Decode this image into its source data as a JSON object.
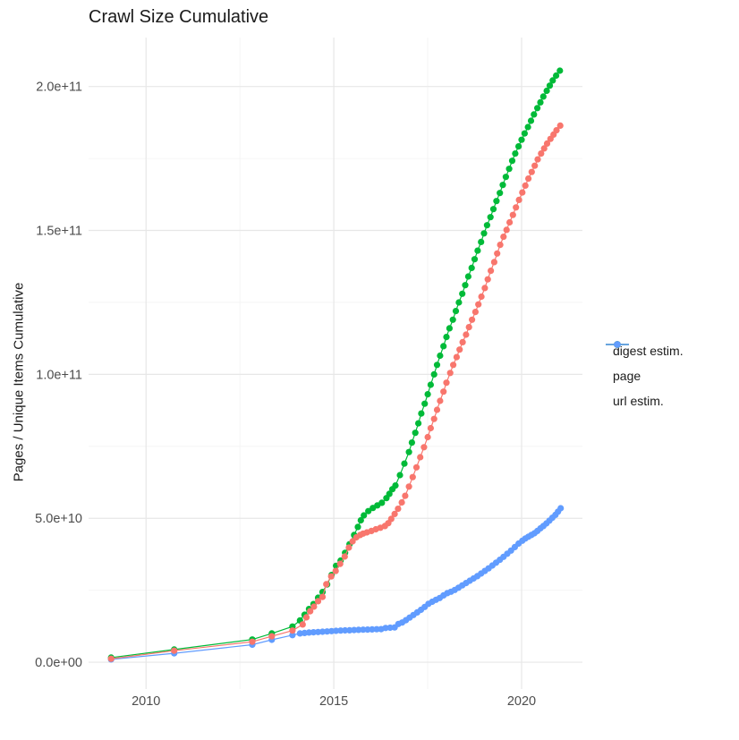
{
  "title": "Crawl Size Cumulative",
  "y_axis": {
    "title": "Pages / Unique Items Cumulative",
    "major_ticks": [
      {
        "label": "0.0e+00",
        "value_e9": 0
      },
      {
        "label": "5.0e+10",
        "value_e9": 50
      },
      {
        "label": "1.0e+11",
        "value_e9": 100
      },
      {
        "label": "1.5e+11",
        "value_e9": 150
      },
      {
        "label": "2.0e+11",
        "value_e9": 200
      }
    ],
    "minor_ticks_e9": [
      25,
      75,
      125,
      175
    ]
  },
  "x_axis": {
    "major_ticks": [
      {
        "label": "2010",
        "value": 2010
      },
      {
        "label": "2015",
        "value": 2015
      },
      {
        "label": "2020",
        "value": 2020
      }
    ],
    "minor_ticks": [
      2012.5,
      2017.5
    ]
  },
  "legend": {
    "items": [
      {
        "label": "digest estim.",
        "color": "#F8766D"
      },
      {
        "label": "page",
        "color": "#00BA38"
      },
      {
        "label": "url estim.",
        "color": "#619CFF"
      }
    ]
  },
  "colors": {
    "digest": "#F8766D",
    "page": "#00BA38",
    "url": "#619CFF",
    "grid_major": "#E7E7E7",
    "grid_minor": "#F3F3F3",
    "tick_text": "#4D4D4D",
    "text": "#1a1a1a"
  },
  "chart_data": {
    "type": "line",
    "title": "Crawl Size Cumulative",
    "xlabel": "",
    "ylabel": "Pages / Unique Items Cumulative",
    "values_unit": "1e9 (billions of pages / unique items)",
    "xlim": [
      2008.47,
      2021.62
    ],
    "ylim_e9": [
      -9.3,
      217
    ],
    "grid": true,
    "legend_position": "right",
    "marker": "point",
    "series": [
      {
        "name": "url estim.",
        "color": "#619CFF",
        "points_year_billions": [
          [
            2009.07,
            1.0
          ],
          [
            2010.75,
            3.1
          ],
          [
            2012.83,
            6.1
          ],
          [
            2013.35,
            7.8
          ],
          [
            2013.9,
            9.4
          ],
          [
            2014.1,
            10.0
          ],
          [
            2014.22,
            10.15
          ],
          [
            2014.34,
            10.3
          ],
          [
            2014.46,
            10.4
          ],
          [
            2014.58,
            10.5
          ],
          [
            2014.7,
            10.6
          ],
          [
            2014.82,
            10.7
          ],
          [
            2014.94,
            10.8
          ],
          [
            2015.06,
            10.9
          ],
          [
            2015.18,
            11.0
          ],
          [
            2015.3,
            11.05
          ],
          [
            2015.42,
            11.1
          ],
          [
            2015.54,
            11.2
          ],
          [
            2015.66,
            11.25
          ],
          [
            2015.78,
            11.3
          ],
          [
            2015.9,
            11.35
          ],
          [
            2016.02,
            11.4
          ],
          [
            2016.14,
            11.45
          ],
          [
            2016.26,
            11.5
          ],
          [
            2016.38,
            11.9
          ],
          [
            2016.5,
            12.0
          ],
          [
            2016.62,
            12.1
          ],
          [
            2016.72,
            13.3
          ],
          [
            2016.82,
            13.8
          ],
          [
            2016.92,
            14.6
          ],
          [
            2017.02,
            15.5
          ],
          [
            2017.12,
            16.4
          ],
          [
            2017.22,
            17.3
          ],
          [
            2017.32,
            18.2
          ],
          [
            2017.42,
            19.2
          ],
          [
            2017.52,
            20.3
          ],
          [
            2017.62,
            21.0
          ],
          [
            2017.72,
            21.7
          ],
          [
            2017.82,
            22.3
          ],
          [
            2017.92,
            23.2
          ],
          [
            2018.02,
            24.0
          ],
          [
            2018.12,
            24.5
          ],
          [
            2018.22,
            25.1
          ],
          [
            2018.32,
            25.9
          ],
          [
            2018.42,
            26.7
          ],
          [
            2018.52,
            27.5
          ],
          [
            2018.62,
            28.3
          ],
          [
            2018.72,
            29.1
          ],
          [
            2018.82,
            29.9
          ],
          [
            2018.92,
            30.8
          ],
          [
            2019.02,
            31.7
          ],
          [
            2019.12,
            32.6
          ],
          [
            2019.22,
            33.6
          ],
          [
            2019.32,
            34.6
          ],
          [
            2019.42,
            35.6
          ],
          [
            2019.52,
            36.6
          ],
          [
            2019.62,
            37.7
          ],
          [
            2019.72,
            38.8
          ],
          [
            2019.82,
            40.0
          ],
          [
            2019.92,
            41.2
          ],
          [
            2020.02,
            42.2
          ],
          [
            2020.1,
            43.0
          ],
          [
            2020.18,
            43.6
          ],
          [
            2020.26,
            44.2
          ],
          [
            2020.34,
            44.8
          ],
          [
            2020.42,
            45.6
          ],
          [
            2020.5,
            46.5
          ],
          [
            2020.58,
            47.3
          ],
          [
            2020.66,
            48.2
          ],
          [
            2020.74,
            49.2
          ],
          [
            2020.82,
            50.2
          ],
          [
            2020.9,
            51.2
          ],
          [
            2020.97,
            52.3
          ],
          [
            2021.04,
            53.5
          ]
        ]
      },
      {
        "name": "page",
        "color": "#00BA38",
        "points_year_billions": [
          [
            2009.07,
            1.6
          ],
          [
            2010.75,
            4.4
          ],
          [
            2012.83,
            7.9
          ],
          [
            2013.35,
            10.0
          ],
          [
            2013.9,
            12.4
          ],
          [
            2014.1,
            14.5
          ],
          [
            2014.22,
            16.5
          ],
          [
            2014.34,
            18.5
          ],
          [
            2014.46,
            20.2
          ],
          [
            2014.58,
            22.4
          ],
          [
            2014.7,
            24.4
          ],
          [
            2014.82,
            27.0
          ],
          [
            2014.94,
            30.3
          ],
          [
            2015.06,
            33.5
          ],
          [
            2015.18,
            35.3
          ],
          [
            2015.3,
            38.0
          ],
          [
            2015.42,
            41.0
          ],
          [
            2015.54,
            44.2
          ],
          [
            2015.64,
            47.0
          ],
          [
            2015.72,
            49.3
          ],
          [
            2015.8,
            51.0
          ],
          [
            2015.92,
            52.5
          ],
          [
            2016.04,
            53.6
          ],
          [
            2016.16,
            54.5
          ],
          [
            2016.28,
            55.4
          ],
          [
            2016.4,
            57.0
          ],
          [
            2016.48,
            58.5
          ],
          [
            2016.56,
            60.1
          ],
          [
            2016.64,
            61.4
          ],
          [
            2016.76,
            65.0
          ],
          [
            2016.88,
            69.0
          ],
          [
            2017.0,
            73.0
          ],
          [
            2017.08,
            76.3
          ],
          [
            2017.17,
            79.7
          ],
          [
            2017.25,
            83.0
          ],
          [
            2017.33,
            86.4
          ],
          [
            2017.42,
            89.8
          ],
          [
            2017.5,
            93.1
          ],
          [
            2017.58,
            96.4
          ],
          [
            2017.67,
            100.0
          ],
          [
            2017.75,
            103.3
          ],
          [
            2017.83,
            106.5
          ],
          [
            2017.92,
            109.8
          ],
          [
            2018.0,
            113.0
          ],
          [
            2018.08,
            116.0
          ],
          [
            2018.17,
            119.0
          ],
          [
            2018.25,
            122.0
          ],
          [
            2018.33,
            125.0
          ],
          [
            2018.42,
            128.0
          ],
          [
            2018.5,
            131.0
          ],
          [
            2018.58,
            134.0
          ],
          [
            2018.67,
            137.0
          ],
          [
            2018.75,
            140.0
          ],
          [
            2018.83,
            143.0
          ],
          [
            2018.92,
            146.0
          ],
          [
            2019.0,
            149.0
          ],
          [
            2019.08,
            151.8
          ],
          [
            2019.17,
            154.6
          ],
          [
            2019.25,
            157.4
          ],
          [
            2019.33,
            160.2
          ],
          [
            2019.42,
            163.0
          ],
          [
            2019.5,
            165.8
          ],
          [
            2019.58,
            168.6
          ],
          [
            2019.67,
            171.4
          ],
          [
            2019.75,
            174.2
          ],
          [
            2019.83,
            176.7
          ],
          [
            2019.92,
            179.2
          ],
          [
            2020.0,
            181.5
          ],
          [
            2020.08,
            183.7
          ],
          [
            2020.17,
            185.9
          ],
          [
            2020.25,
            188.1
          ],
          [
            2020.33,
            190.3
          ],
          [
            2020.42,
            192.5
          ],
          [
            2020.5,
            194.5
          ],
          [
            2020.58,
            196.5
          ],
          [
            2020.67,
            198.5
          ],
          [
            2020.75,
            200.3
          ],
          [
            2020.83,
            202.1
          ],
          [
            2020.92,
            203.8
          ],
          [
            2021.02,
            205.5
          ]
        ]
      },
      {
        "name": "digest estim.",
        "color": "#F8766D",
        "points_year_billions": [
          [
            2009.07,
            1.2
          ],
          [
            2010.75,
            4.0
          ],
          [
            2012.83,
            7.1
          ],
          [
            2013.35,
            9.0
          ],
          [
            2013.9,
            11.0
          ],
          [
            2014.17,
            13.1
          ],
          [
            2014.27,
            15.6
          ],
          [
            2014.37,
            17.7
          ],
          [
            2014.47,
            19.3
          ],
          [
            2014.58,
            21.2
          ],
          [
            2014.7,
            22.7
          ],
          [
            2014.8,
            27.1
          ],
          [
            2014.93,
            29.8
          ],
          [
            2015.05,
            31.7
          ],
          [
            2015.17,
            34.2
          ],
          [
            2015.29,
            36.7
          ],
          [
            2015.4,
            39.8
          ],
          [
            2015.5,
            42.0
          ],
          [
            2015.6,
            43.4
          ],
          [
            2015.7,
            44.2
          ],
          [
            2015.78,
            44.7
          ],
          [
            2015.88,
            45.1
          ],
          [
            2016.0,
            45.6
          ],
          [
            2016.12,
            46.2
          ],
          [
            2016.24,
            46.7
          ],
          [
            2016.36,
            47.3
          ],
          [
            2016.45,
            48.3
          ],
          [
            2016.53,
            49.8
          ],
          [
            2016.62,
            51.5
          ],
          [
            2016.71,
            53.3
          ],
          [
            2016.81,
            55.5
          ],
          [
            2016.9,
            57.8
          ],
          [
            2017.0,
            61.0
          ],
          [
            2017.1,
            64.3
          ],
          [
            2017.2,
            67.7
          ],
          [
            2017.3,
            71.2
          ],
          [
            2017.4,
            74.7
          ],
          [
            2017.5,
            78.2
          ],
          [
            2017.58,
            81.3
          ],
          [
            2017.67,
            84.5
          ],
          [
            2017.75,
            87.7
          ],
          [
            2017.83,
            90.8
          ],
          [
            2017.92,
            94.0
          ],
          [
            2018.0,
            97.1
          ],
          [
            2018.1,
            100.5
          ],
          [
            2018.18,
            103.3
          ],
          [
            2018.27,
            106.0
          ],
          [
            2018.35,
            108.6
          ],
          [
            2018.43,
            111.2
          ],
          [
            2018.52,
            113.8
          ],
          [
            2018.6,
            116.4
          ],
          [
            2018.68,
            119.0
          ],
          [
            2018.77,
            121.7
          ],
          [
            2018.85,
            124.3
          ],
          [
            2018.93,
            127.0
          ],
          [
            2019.02,
            130.0
          ],
          [
            2019.1,
            133.0
          ],
          [
            2019.18,
            136.0
          ],
          [
            2019.27,
            139.0
          ],
          [
            2019.35,
            142.0
          ],
          [
            2019.43,
            145.0
          ],
          [
            2019.52,
            147.8
          ],
          [
            2019.6,
            150.2
          ],
          [
            2019.68,
            152.8
          ],
          [
            2019.77,
            155.4
          ],
          [
            2019.85,
            158.0
          ],
          [
            2019.93,
            160.6
          ],
          [
            2020.02,
            163.2
          ],
          [
            2020.1,
            165.6
          ],
          [
            2020.18,
            168.0
          ],
          [
            2020.27,
            170.3
          ],
          [
            2020.35,
            172.5
          ],
          [
            2020.43,
            174.7
          ],
          [
            2020.52,
            176.7
          ],
          [
            2020.6,
            178.5
          ],
          [
            2020.68,
            180.2
          ],
          [
            2020.77,
            181.8
          ],
          [
            2020.85,
            183.3
          ],
          [
            2020.93,
            184.8
          ],
          [
            2021.03,
            186.4
          ]
        ]
      }
    ]
  }
}
